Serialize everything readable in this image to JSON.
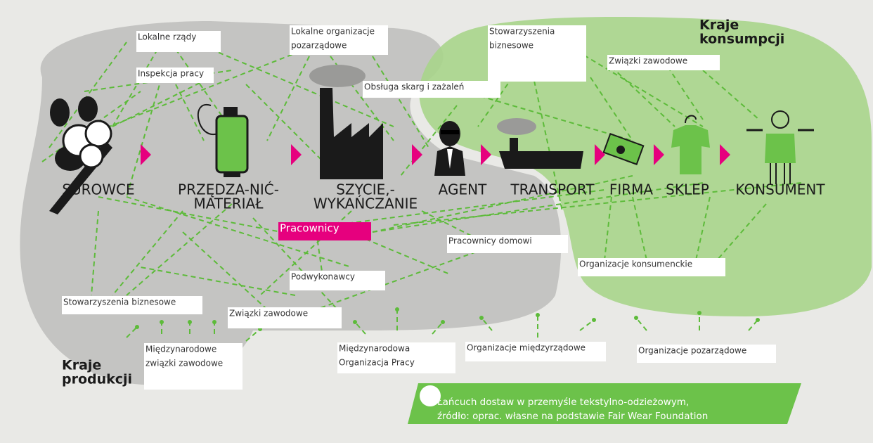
{
  "regions": {
    "consumption": {
      "lines": [
        "Kraje",
        "konsumpcji"
      ]
    },
    "production": {
      "lines": [
        "Kraje",
        "produkcji"
      ]
    }
  },
  "stages": [
    {
      "lines": [
        "SUROWCE"
      ]
    },
    {
      "lines": [
        "PRZĘDZA-NIĆ-",
        "MATERIAŁ"
      ]
    },
    {
      "lines": [
        "SZYCIE,-",
        "WYKAŃCZANIE"
      ]
    },
    {
      "lines": [
        "AGENT"
      ]
    },
    {
      "lines": [
        "TRANSPORT"
      ]
    },
    {
      "lines": [
        "FIRMA"
      ]
    },
    {
      "lines": [
        "SKLEP"
      ]
    },
    {
      "lines": [
        "KONSUMENT"
      ]
    }
  ],
  "actors": [
    {
      "lines": [
        "Lokalne rządy"
      ]
    },
    {
      "lines": [
        "Lokalne organizacje",
        "pozarządowe"
      ]
    },
    {
      "lines": [
        "Inspekcja pracy"
      ]
    },
    {
      "lines": [
        "Stowarzyszenia",
        "biznesowe"
      ]
    },
    {
      "lines": [
        "Związki zawodowe"
      ]
    },
    {
      "lines": [
        "Obsługa skarg i zażaleń"
      ]
    },
    {
      "lines": [
        "Pracownicy"
      ]
    },
    {
      "lines": [
        "Pracownicy domowi"
      ]
    },
    {
      "lines": [
        "Organizacje konsumenckie"
      ]
    },
    {
      "lines": [
        "Podwykonawcy"
      ]
    },
    {
      "lines": [
        "Stowarzyszenia biznesowe"
      ]
    },
    {
      "lines": [
        "Związki zawodowe"
      ]
    },
    {
      "lines": [
        "Międzynarodowe",
        "związki zawodowe"
      ]
    },
    {
      "lines": [
        "Międzynarodowa",
        "Organizacja Pracy"
      ]
    },
    {
      "lines": [
        "Organizacje międzyrządowe"
      ]
    },
    {
      "lines": [
        "Organizacje pozarządowe"
      ]
    }
  ],
  "caption": {
    "lines": [
      "Łańcuch dostaw w przemyśle tekstylno-odzieżowym,",
      "źródło: oprac. własne na podstawie Fair Wear Foundation"
    ]
  }
}
